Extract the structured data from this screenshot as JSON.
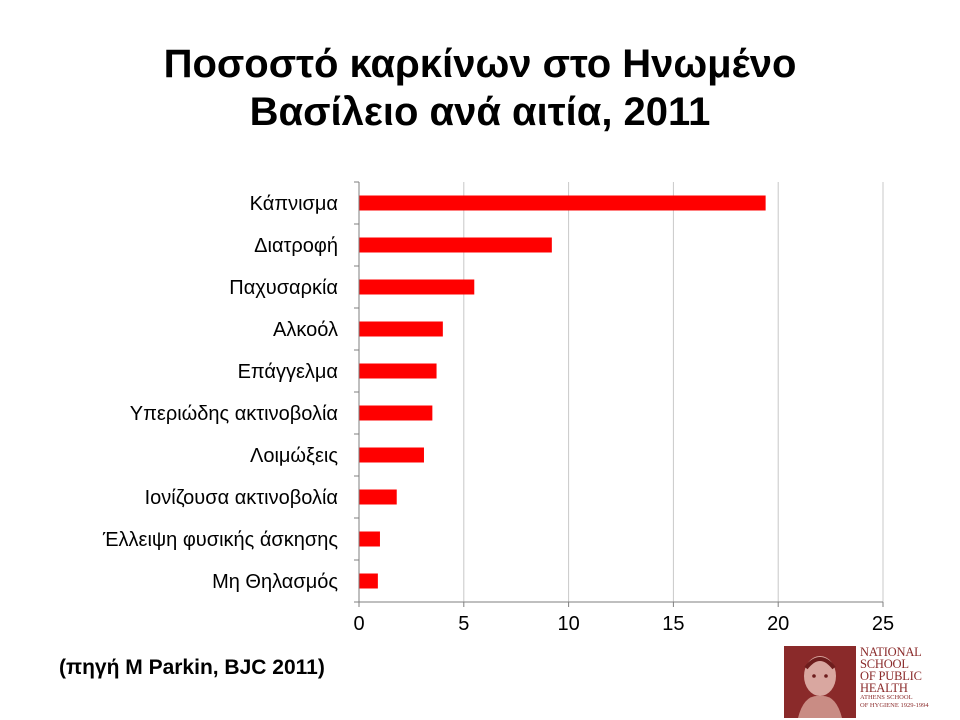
{
  "title": {
    "line1": "Ποσοστό καρκίνων στο Ηνωμένο",
    "line2": "Βασίλειο ανά αιτία, 2011"
  },
  "chart_data": {
    "type": "bar",
    "orientation": "horizontal",
    "categories": [
      "Κάπνισμα",
      "Διατροφή",
      "Παχυσαρκία",
      "Αλκοόλ",
      "Επάγγελμα",
      "Υπεριώδης ακτινοβολία",
      "Λοιμώξεις",
      "Ιονίζουσα ακτινοβολία",
      "Έλλειψη φυσικής άσκησης",
      "Μη Θηλασμός"
    ],
    "values": [
      19.4,
      9.2,
      5.5,
      4.0,
      3.7,
      3.5,
      3.1,
      1.8,
      1.0,
      0.9
    ],
    "xlim": [
      0,
      25
    ],
    "xticks": [
      0,
      5,
      10,
      15,
      20,
      25
    ],
    "grid": "vertical",
    "bar_color": "#ff0000",
    "grid_color": "#c8c8c8"
  },
  "source": "(πηγή M Parkin, BJC 2011)",
  "logo": {
    "lines": [
      "NATIONAL",
      "SCHOOL",
      "OF PUBLIC",
      "HEALTH"
    ],
    "sublines": [
      "ATHENS SCHOOL",
      "OF HYGIENE 1929-1994"
    ],
    "color": "#8a2a2a"
  }
}
